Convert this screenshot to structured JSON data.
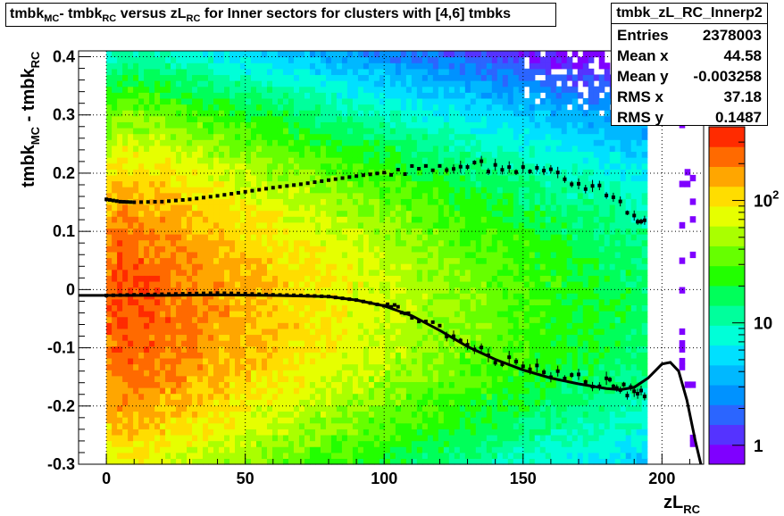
{
  "title": {
    "p1": "tmbk",
    "p1_sub": "MC",
    "p2": "- tmbk",
    "p2_sub": "RC",
    "p3": "versus zL",
    "p3_sub": "RC",
    "p4": "for Inner sectors for clusters with [4,6] tmbks"
  },
  "stats": {
    "name": "tmbk_zL_RC_Innerp2",
    "rows": [
      {
        "label": "Entries",
        "value": "2378003"
      },
      {
        "label": "Mean x",
        "value": "44.58"
      },
      {
        "label": "Mean y",
        "value": "-0.003258"
      },
      {
        "label": "RMS x",
        "value": "37.18"
      },
      {
        "label": "RMS y",
        "value": "0.1487"
      }
    ]
  },
  "axes": {
    "x_label_main": "zL",
    "x_label_sub": "RC",
    "y_label_main": "tmbk",
    "y_label_sub1": "MC",
    "y_label_mid": " - tmbk",
    "y_label_sub2": "RC",
    "x_ticks": [
      "0",
      "50",
      "100",
      "150",
      "200"
    ],
    "y_ticks": [
      "-0.3",
      "-0.2",
      "-0.1",
      "0",
      "0.1",
      "0.2",
      "0.3",
      "0.4"
    ],
    "z_ticks": [
      "1",
      "10",
      "10"
    ],
    "z_tick_exp": "2"
  },
  "colors": {
    "palette": [
      "#7f00ff",
      "#5533ff",
      "#2b65ff",
      "#0092ff",
      "#00b8ff",
      "#00e0ff",
      "#00ffd8",
      "#00ff9c",
      "#00ff5a",
      "#22ff00",
      "#66ff00",
      "#aaff00",
      "#e6ff00",
      "#ffdd00",
      "#ffa600",
      "#ff6a00",
      "#ff2b00"
    ],
    "profile": "#000000"
  },
  "chart_data": {
    "type": "heatmap",
    "xlim": [
      -10,
      215
    ],
    "ylim": [
      -0.3,
      0.41
    ],
    "zlim": [
      0.7,
      400
    ],
    "z_scale": "log",
    "grid": true,
    "profiles": [
      {
        "x": [
          0,
          5,
          10,
          20,
          30,
          40,
          50,
          60,
          70,
          80,
          90,
          100,
          110,
          120,
          130,
          140,
          150,
          160,
          170,
          180,
          190,
          195
        ],
        "y": [
          0.155,
          0.151,
          0.15,
          0.151,
          0.155,
          0.161,
          0.168,
          0.175,
          0.181,
          0.188,
          0.195,
          0.201,
          0.205,
          0.211,
          0.214,
          0.21,
          0.204,
          0.198,
          0.185,
          0.164,
          0.125,
          0.11
        ]
      },
      {
        "x": [
          0,
          10,
          20,
          30,
          40,
          50,
          60,
          70,
          80,
          90,
          100,
          105,
          110,
          120,
          130,
          140,
          150,
          160,
          170,
          180,
          185,
          190,
          195
        ],
        "y": [
          -0.01,
          -0.009,
          -0.008,
          -0.007,
          -0.006,
          -0.007,
          -0.009,
          -0.01,
          -0.012,
          -0.018,
          -0.028,
          -0.035,
          -0.046,
          -0.068,
          -0.098,
          -0.118,
          -0.133,
          -0.145,
          -0.153,
          -0.163,
          -0.168,
          -0.175,
          -0.17
        ]
      }
    ],
    "fit_curve": {
      "x": [
        -10,
        0,
        20,
        40,
        60,
        80,
        90,
        100,
        110,
        120,
        130,
        140,
        150,
        160,
        170,
        180,
        185,
        190,
        195,
        200,
        203,
        206,
        209,
        212,
        214
      ],
      "y": [
        -0.01,
        -0.01,
        -0.01,
        -0.009,
        -0.01,
        -0.012,
        -0.018,
        -0.028,
        -0.045,
        -0.07,
        -0.098,
        -0.12,
        -0.138,
        -0.152,
        -0.162,
        -0.17,
        -0.172,
        -0.168,
        -0.152,
        -0.128,
        -0.125,
        -0.14,
        -0.19,
        -0.26,
        -0.3
      ]
    }
  }
}
